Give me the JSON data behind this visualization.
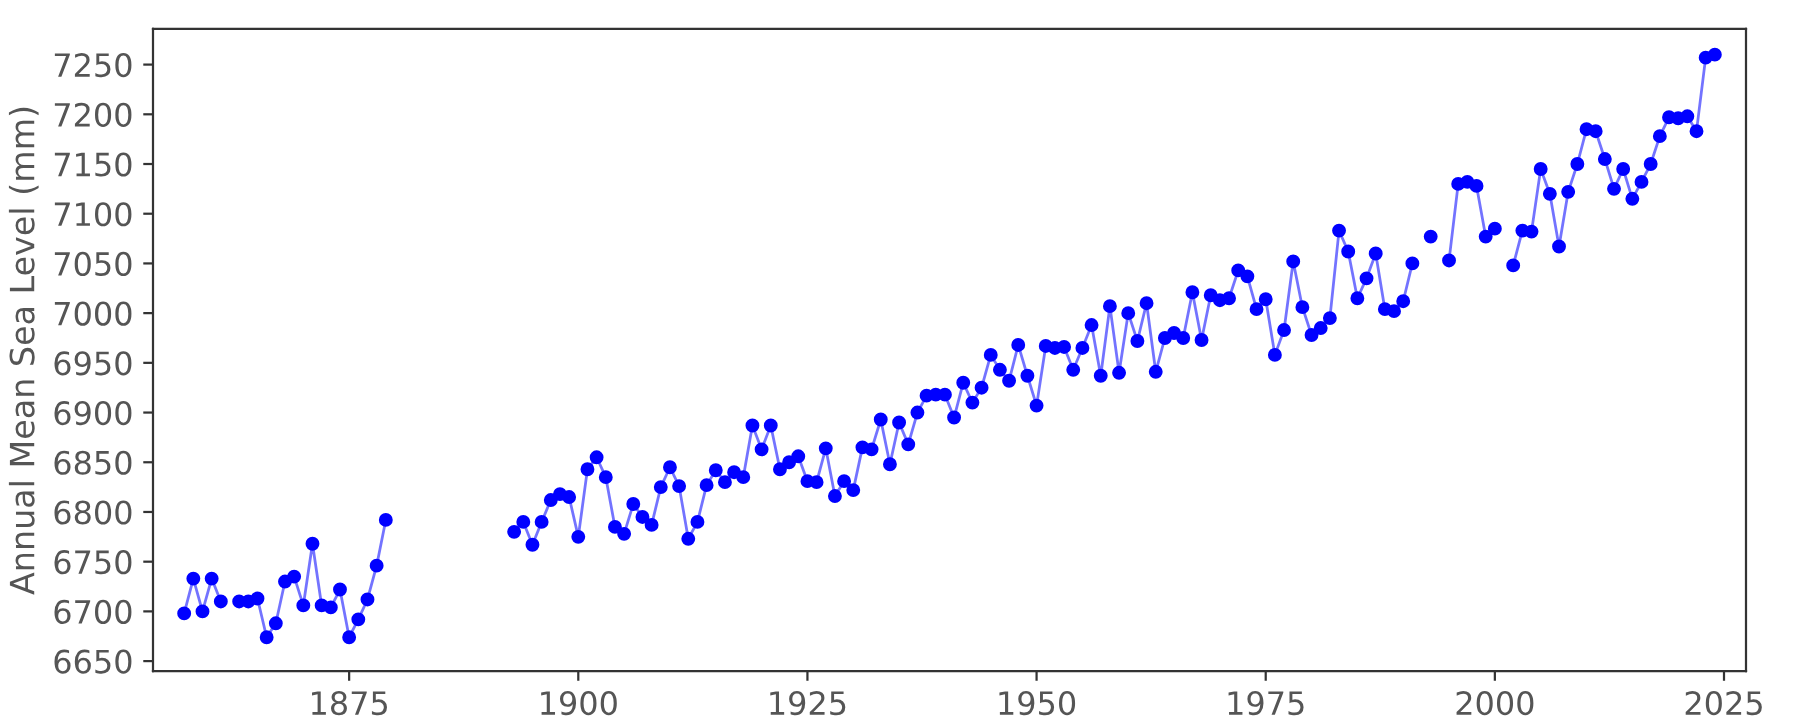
{
  "chart_data": {
    "type": "line",
    "ylabel": "Annual Mean Sea Level (mm)",
    "marker": "circle",
    "line_style": "solid",
    "grid": false,
    "xlim": [
      1853.6,
      2027.4
    ],
    "ylim": [
      6640,
      7286
    ],
    "xticks": [
      1875,
      1900,
      1925,
      1950,
      1975,
      2000,
      2025
    ],
    "yticks": [
      6650,
      6700,
      6750,
      6800,
      6850,
      6900,
      6950,
      7000,
      7050,
      7100,
      7150,
      7200,
      7250
    ],
    "series": [
      {
        "color": "#0000ff",
        "x": [
          1857,
          1858,
          1859,
          1860,
          1861,
          1862,
          1863,
          1864,
          1865,
          1866,
          1867,
          1868,
          1869,
          1870,
          1871,
          1872,
          1873,
          1874,
          1875,
          1876,
          1877,
          1878,
          1879,
          1880,
          1893,
          1894,
          1895,
          1896,
          1897,
          1898,
          1899,
          1900,
          1901,
          1902,
          1903,
          1904,
          1905,
          1906,
          1907,
          1908,
          1909,
          1910,
          1911,
          1912,
          1913,
          1914,
          1915,
          1916,
          1917,
          1918,
          1919,
          1920,
          1921,
          1922,
          1923,
          1924,
          1925,
          1926,
          1927,
          1928,
          1929,
          1930,
          1931,
          1932,
          1933,
          1934,
          1935,
          1936,
          1937,
          1938,
          1939,
          1940,
          1941,
          1942,
          1943,
          1944,
          1945,
          1946,
          1947,
          1948,
          1949,
          1950,
          1951,
          1952,
          1953,
          1954,
          1955,
          1956,
          1957,
          1958,
          1959,
          1960,
          1961,
          1962,
          1963,
          1964,
          1965,
          1966,
          1967,
          1968,
          1969,
          1970,
          1971,
          1972,
          1973,
          1974,
          1975,
          1976,
          1977,
          1978,
          1979,
          1980,
          1981,
          1982,
          1983,
          1984,
          1985,
          1986,
          1987,
          1988,
          1989,
          1990,
          1991,
          1992,
          1993,
          1994,
          1995,
          1996,
          1997,
          1998,
          1999,
          2000,
          2001,
          2002,
          2003,
          2004,
          2005,
          2006,
          2007,
          2008,
          2009,
          2010,
          2011,
          2012,
          2013,
          2014,
          2015,
          2016,
          2017,
          2018,
          2019,
          2020,
          2021,
          2022,
          2023,
          2024
        ],
        "values": [
          6698,
          6733,
          6700,
          6733,
          6710,
          null,
          6710,
          6710,
          6713,
          6674,
          6688,
          6730,
          6735,
          6706,
          6768,
          6706,
          6704,
          6722,
          6674,
          6692,
          6712,
          6746,
          6792,
          null,
          6780,
          6790,
          6767,
          6790,
          6812,
          6818,
          6815,
          6775,
          6843,
          6855,
          6835,
          6785,
          6778,
          6808,
          6795,
          6787,
          6825,
          6845,
          6826,
          6773,
          6790,
          6827,
          6842,
          6830,
          6840,
          6835,
          6887,
          6863,
          6887,
          6843,
          6850,
          6856,
          6831,
          6830,
          6864,
          6816,
          6831,
          6822,
          6865,
          6863,
          6893,
          6848,
          6890,
          6868,
          6900,
          6917,
          6918,
          6918,
          6895,
          6930,
          6910,
          6925,
          6958,
          6943,
          6932,
          6968,
          6937,
          6907,
          6967,
          6965,
          6966,
          6943,
          6965,
          6988,
          6937,
          7007,
          6940,
          7000,
          6972,
          7010,
          6941,
          6975,
          6980,
          6975,
          7021,
          6973,
          7018,
          7013,
          7015,
          7043,
          7037,
          7004,
          7014,
          6958,
          6983,
          7052,
          7006,
          6978,
          6985,
          6995,
          7083,
          7062,
          7015,
          7035,
          7060,
          7004,
          7002,
          7012,
          7050,
          null,
          7077,
          null,
          7053,
          7130,
          7132,
          7128,
          7077,
          7085,
          null,
          7048,
          7083,
          7082,
          7145,
          7120,
          7067,
          7122,
          7150,
          7185,
          7183,
          7155,
          7125,
          7145,
          7115,
          7132,
          7150,
          7178,
          7197,
          7196,
          7198,
          7183,
          7257,
          7260
        ]
      }
    ]
  }
}
